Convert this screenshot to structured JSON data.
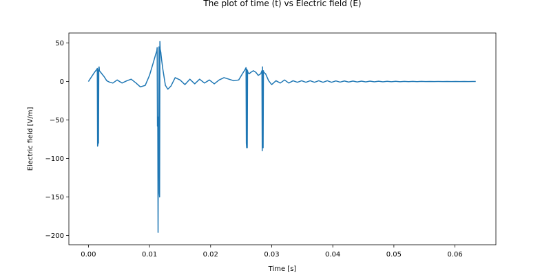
{
  "chart_data": {
    "type": "line",
    "title": "The plot of time (t) vs Electric field (E)",
    "xlabel": "Time [s]",
    "ylabel": "Electric field [V/m]",
    "xlim": [
      -0.0032,
      0.0667
    ],
    "ylim": [
      -212,
      63
    ],
    "xticks": [
      0.0,
      0.01,
      0.02,
      0.03,
      0.04,
      0.05,
      0.06
    ],
    "xtick_labels": [
      "0.00",
      "0.01",
      "0.02",
      "0.03",
      "0.04",
      "0.05",
      "0.06"
    ],
    "yticks": [
      50,
      0,
      -50,
      -100,
      -150,
      -200
    ],
    "ytick_labels": [
      "50",
      "0",
      "−50",
      "−100",
      "−150",
      "−200"
    ],
    "grid": false,
    "series": [
      {
        "color": "#1f77b4",
        "x": [
          0.0,
          0.0005,
          0.001,
          0.0014,
          0.00145,
          0.0015,
          0.00155,
          0.0016,
          0.00165,
          0.0017,
          0.00175,
          0.0018,
          0.0019,
          0.0022,
          0.0026,
          0.003,
          0.0035,
          0.004,
          0.0047,
          0.0055,
          0.0063,
          0.007,
          0.0078,
          0.0085,
          0.0093,
          0.01,
          0.0106,
          0.011,
          0.0112,
          0.01125,
          0.0113,
          0.01135,
          0.0114,
          0.01145,
          0.0115,
          0.01155,
          0.0116,
          0.01165,
          0.0117,
          0.01175,
          0.0118,
          0.01185,
          0.0119,
          0.012,
          0.0122,
          0.0126,
          0.013,
          0.0135,
          0.0142,
          0.015,
          0.0158,
          0.0166,
          0.0174,
          0.0182,
          0.019,
          0.0198,
          0.0206,
          0.0214,
          0.0222,
          0.023,
          0.0238,
          0.0246,
          0.0252,
          0.0256,
          0.0258,
          0.02585,
          0.0259,
          0.02595,
          0.026,
          0.02605,
          0.0261,
          0.0263,
          0.0266,
          0.027,
          0.0274,
          0.0278,
          0.0282,
          0.0284,
          0.02845,
          0.0285,
          0.02855,
          0.0286,
          0.02865,
          0.0287,
          0.029,
          0.0295,
          0.03,
          0.0307,
          0.0314,
          0.0321,
          0.0328,
          0.0335,
          0.0342,
          0.0349,
          0.0356,
          0.0363,
          0.037,
          0.0377,
          0.0384,
          0.0391,
          0.0398,
          0.0405,
          0.0412,
          0.0419,
          0.0426,
          0.0433,
          0.044,
          0.0447,
          0.0454,
          0.0461,
          0.0468,
          0.0475,
          0.0482,
          0.0489,
          0.0496,
          0.0503,
          0.051,
          0.0517,
          0.0524,
          0.0531,
          0.0538,
          0.0545,
          0.0552,
          0.0559,
          0.0566,
          0.0573,
          0.058,
          0.0587,
          0.0594,
          0.0601,
          0.0608,
          0.0615,
          0.0622,
          0.0629,
          0.0634
        ],
        "values": [
          0,
          6,
          12,
          16,
          17,
          -84,
          -82,
          15,
          -80,
          18,
          19,
          14,
          13,
          10,
          6,
          1,
          -1,
          -2,
          2,
          -2,
          1,
          3,
          -2,
          -7,
          -5,
          8,
          24,
          35,
          40,
          44,
          -58,
          -46,
          -196,
          -48,
          -60,
          45,
          -145,
          -150,
          52,
          42,
          40,
          38,
          34,
          27,
          15,
          -5,
          -10,
          -6,
          5,
          2,
          -4,
          3,
          -3,
          3,
          -2,
          2,
          -3,
          2,
          5,
          3,
          1,
          2,
          10,
          15,
          18,
          -80,
          -86,
          16,
          -86,
          14,
          12,
          10,
          12,
          14,
          12,
          8,
          10,
          14,
          -90,
          19,
          -80,
          -86,
          14,
          12,
          10,
          1,
          -4,
          1,
          -2,
          2,
          -2,
          1,
          -1,
          1,
          -1,
          1,
          -1,
          1,
          -1,
          1,
          -1,
          0.8,
          -0.8,
          0.7,
          -0.7,
          0.6,
          -0.6,
          0.5,
          -0.5,
          0.5,
          -0.4,
          0.4,
          -0.4,
          0.3,
          -0.3,
          0.3,
          -0.3,
          0.2,
          -0.2,
          0.2,
          -0.2,
          0.2,
          -0.1,
          0.1,
          -0.1,
          0.1,
          -0.1,
          0.1,
          -0.1,
          0.1,
          -0.1,
          0.1,
          -0.1,
          0.1,
          0
        ]
      }
    ]
  }
}
